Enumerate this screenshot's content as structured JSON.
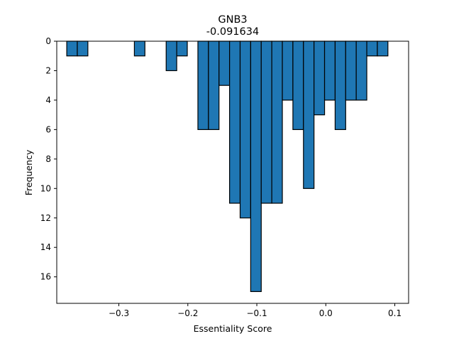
{
  "chart_data": {
    "type": "bar",
    "title": "GNB3",
    "subtitle": "-0.091634",
    "xlabel": "Essentiality Score",
    "ylabel": "Frequency",
    "xlim": [
      -0.39,
      0.12
    ],
    "ylim": [
      17.8,
      0
    ],
    "y_inverted": true,
    "grid": false,
    "bar_color": "#1f77b4",
    "bar_edge_color": "#000000",
    "bin_width": 0.0153,
    "bins": [
      {
        "x": -0.3755,
        "y": 1
      },
      {
        "x": -0.3602,
        "y": 1
      },
      {
        "x": -0.2775,
        "y": 1
      },
      {
        "x": -0.2314,
        "y": 2
      },
      {
        "x": -0.2161,
        "y": 1
      },
      {
        "x": -0.1854,
        "y": 6
      },
      {
        "x": -0.1701,
        "y": 6
      },
      {
        "x": -0.1548,
        "y": 3
      },
      {
        "x": -0.1395,
        "y": 11
      },
      {
        "x": -0.1242,
        "y": 12
      },
      {
        "x": -0.1089,
        "y": 17
      },
      {
        "x": -0.0936,
        "y": 11
      },
      {
        "x": -0.0783,
        "y": 11
      },
      {
        "x": -0.063,
        "y": 4
      },
      {
        "x": -0.0477,
        "y": 6
      },
      {
        "x": -0.0324,
        "y": 10
      },
      {
        "x": -0.0171,
        "y": 5
      },
      {
        "x": -0.0018,
        "y": 4
      },
      {
        "x": 0.0135,
        "y": 6
      },
      {
        "x": 0.0288,
        "y": 4
      },
      {
        "x": 0.0441,
        "y": 4
      },
      {
        "x": 0.0594,
        "y": 1
      },
      {
        "x": 0.0747,
        "y": 1
      }
    ],
    "x_ticks": [
      -0.3,
      -0.2,
      -0.1,
      0.0,
      0.1
    ],
    "x_tick_labels": [
      "−0.3",
      "−0.2",
      "−0.1",
      "0.0",
      "0.1"
    ],
    "y_ticks": [
      0,
      2,
      4,
      6,
      8,
      10,
      12,
      14,
      16
    ],
    "y_tick_labels": [
      "0",
      "2",
      "4",
      "6",
      "8",
      "10",
      "12",
      "14",
      "16"
    ]
  }
}
